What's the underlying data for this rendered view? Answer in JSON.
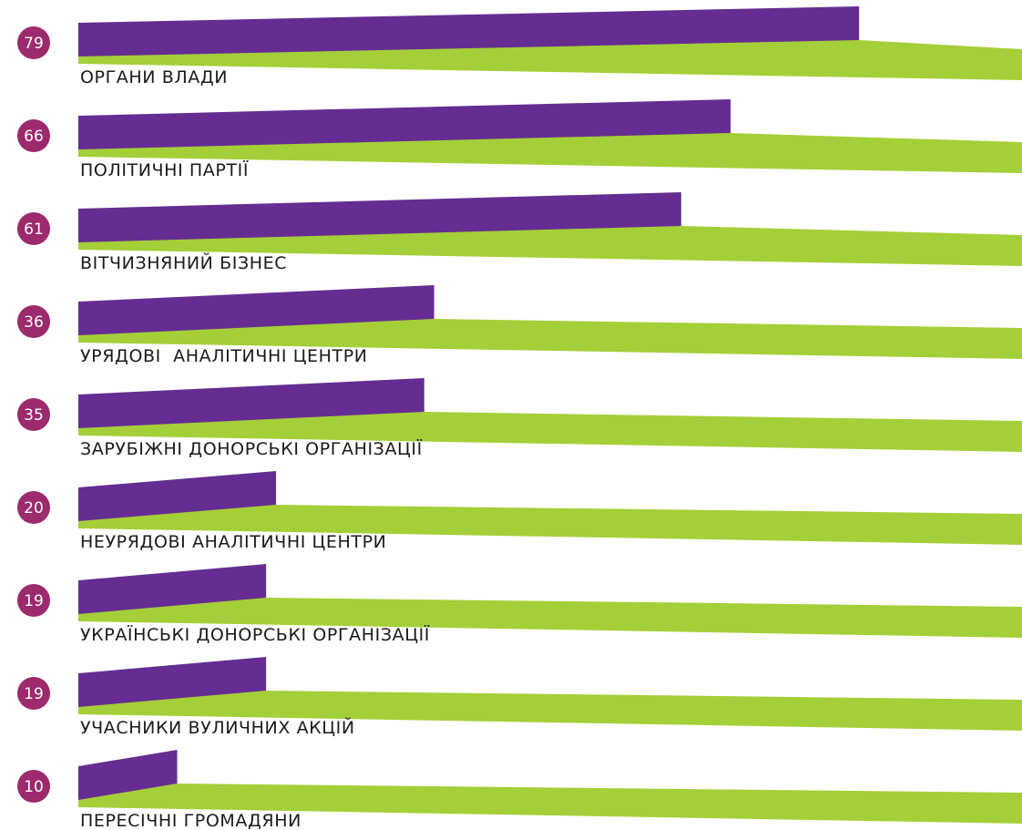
{
  "chart_data": {
    "type": "bar",
    "orientation": "horizontal",
    "categories": [
      "ОРГАНИ ВЛАДИ",
      "ПОЛІТИЧНІ ПАРТІЇ",
      "ВІТЧИЗНЯНИЙ БІЗНЕС",
      "УРЯДОВІ  АНАЛІТИЧНІ ЦЕНТРИ",
      "ЗАРУБІЖНІ ДОНОРСЬКІ ОРГАНІЗАЦІЇ",
      "НЕУРЯДОВІ АНАЛІТИЧНІ ЦЕНТРИ",
      "УКРАЇНСЬКІ ДОНОРСЬКІ ОРГАНІЗАЦІЇ",
      "УЧАСНИКИ ВУЛИЧНИХ АКЦІЙ",
      "ПЕРЕСІЧНІ ГРОМАДЯНИ"
    ],
    "values": [
      79,
      66,
      61,
      36,
      35,
      20,
      19,
      19,
      10
    ],
    "data_labels": [
      "79",
      "66",
      "61",
      "36",
      "35",
      "20",
      "19",
      "19",
      "10"
    ],
    "title": "",
    "xlabel": "",
    "ylabel": "",
    "xlim": [
      0,
      100
    ],
    "grid": false,
    "legend": "none"
  },
  "colors": {
    "value_bar": "#652d91",
    "remainder_bar": "#a5cf38",
    "value_badge": "#9c2a6c",
    "label_text": "#1a1a1a"
  }
}
